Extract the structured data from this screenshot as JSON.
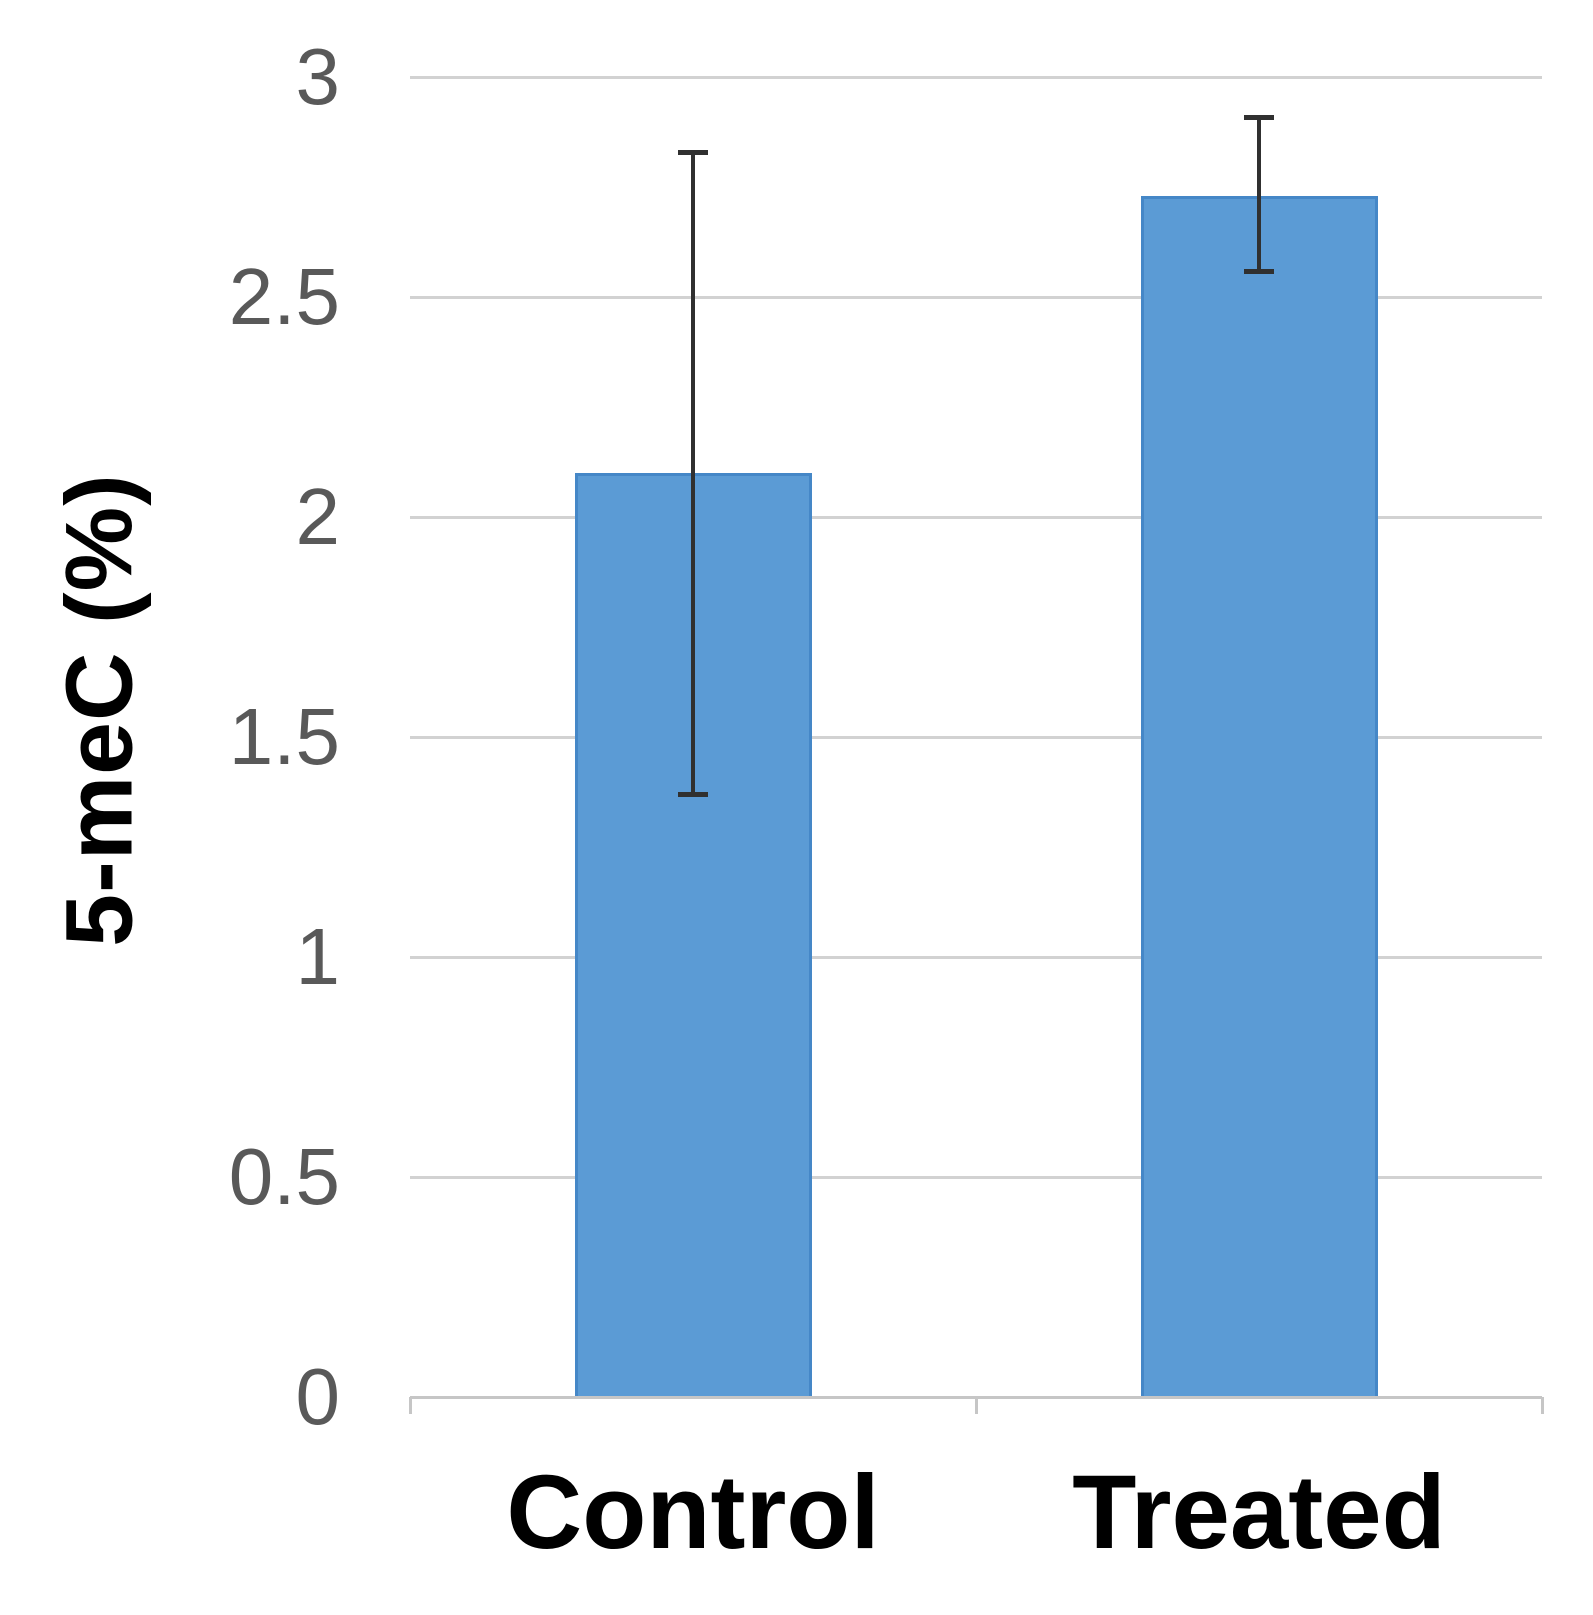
{
  "chart_data": {
    "type": "bar",
    "title": "",
    "categories": [
      "Control",
      "Treated"
    ],
    "values": [
      2.1,
      2.73
    ],
    "error_plus": [
      0.73,
      0.18
    ],
    "error_minus": [
      0.73,
      0.17
    ],
    "xlabel": "",
    "ylabel": "5-meC (%)",
    "ylim": [
      0,
      3
    ],
    "ytick_step": 0.5,
    "yticks": [
      0,
      0.5,
      1,
      1.5,
      2,
      2.5,
      3
    ],
    "ytick_labels": [
      "0",
      "0.5",
      "1",
      "1.5",
      "2",
      "2.5",
      "3"
    ],
    "grid": "horizontal",
    "legend": "none",
    "colors": {
      "bar_fill": "#5B9BD5",
      "bar_border": "#4587C7",
      "error_bar": "#303030",
      "gridline": "#D2D2D2",
      "axis_line": "#C6C6C6",
      "tick_label": "#595959",
      "category_label": "#000000",
      "axis_title": "#000000",
      "background": "#FFFFFF"
    }
  }
}
